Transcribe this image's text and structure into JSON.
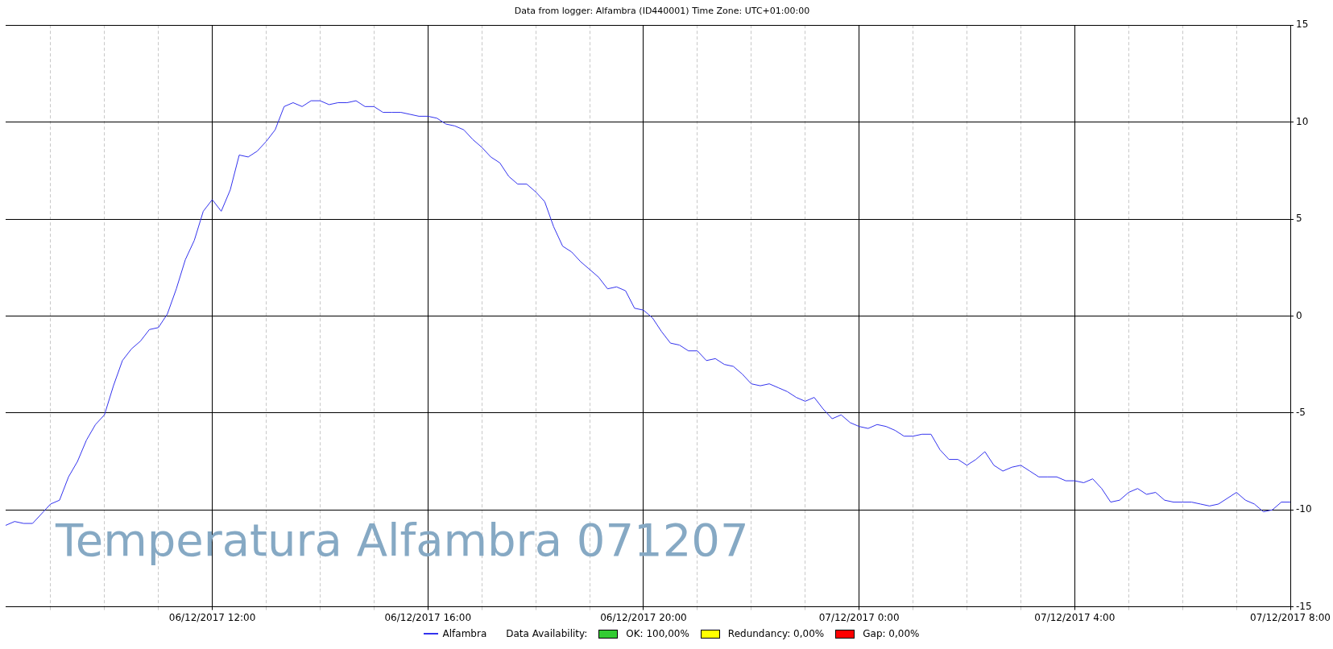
{
  "chart_data": {
    "type": "line",
    "title": "Data from logger: Alfambra (ID440001) Time Zone: UTC+01:00:00",
    "annotations": [
      "Temperatura Alfambra 071207",
      "Data Availability:",
      "OK: 100,00%",
      "Redundancy: 0,00%",
      "Gap: 0,00%"
    ],
    "x": [
      "2017-12-06T08:10",
      "2017-12-06T08:20",
      "2017-12-06T08:30",
      "2017-12-06T08:40",
      "2017-12-06T08:50",
      "2017-12-06T09:00",
      "2017-12-06T09:10",
      "2017-12-06T09:20",
      "2017-12-06T09:30",
      "2017-12-06T09:40",
      "2017-12-06T09:50",
      "2017-12-06T10:00",
      "2017-12-06T10:10",
      "2017-12-06T10:20",
      "2017-12-06T10:30",
      "2017-12-06T10:40",
      "2017-12-06T10:50",
      "2017-12-06T11:00",
      "2017-12-06T11:10",
      "2017-12-06T11:20",
      "2017-12-06T11:30",
      "2017-12-06T11:40",
      "2017-12-06T11:50",
      "2017-12-06T12:00",
      "2017-12-06T12:10",
      "2017-12-06T12:20",
      "2017-12-06T12:30",
      "2017-12-06T12:40",
      "2017-12-06T12:50",
      "2017-12-06T13:00",
      "2017-12-06T13:10",
      "2017-12-06T13:20",
      "2017-12-06T13:30",
      "2017-12-06T13:40",
      "2017-12-06T13:50",
      "2017-12-06T14:00",
      "2017-12-06T14:10",
      "2017-12-06T14:20",
      "2017-12-06T14:30",
      "2017-12-06T14:40",
      "2017-12-06T14:50",
      "2017-12-06T15:00",
      "2017-12-06T15:10",
      "2017-12-06T15:20",
      "2017-12-06T15:30",
      "2017-12-06T15:40",
      "2017-12-06T15:50",
      "2017-12-06T16:00",
      "2017-12-06T16:10",
      "2017-12-06T16:20",
      "2017-12-06T16:30",
      "2017-12-06T16:40",
      "2017-12-06T16:50",
      "2017-12-06T17:00",
      "2017-12-06T17:10",
      "2017-12-06T17:20",
      "2017-12-06T17:30",
      "2017-12-06T17:40",
      "2017-12-06T17:50",
      "2017-12-06T18:00",
      "2017-12-06T18:10",
      "2017-12-06T18:20",
      "2017-12-06T18:30",
      "2017-12-06T18:40",
      "2017-12-06T18:50",
      "2017-12-06T19:00",
      "2017-12-06T19:10",
      "2017-12-06T19:20",
      "2017-12-06T19:30",
      "2017-12-06T19:40",
      "2017-12-06T19:50",
      "2017-12-06T20:00",
      "2017-12-06T20:10",
      "2017-12-06T20:20",
      "2017-12-06T20:30",
      "2017-12-06T20:40",
      "2017-12-06T20:50",
      "2017-12-06T21:00",
      "2017-12-06T21:10",
      "2017-12-06T21:20",
      "2017-12-06T21:30",
      "2017-12-06T21:40",
      "2017-12-06T21:50",
      "2017-12-06T22:00",
      "2017-12-06T22:10",
      "2017-12-06T22:20",
      "2017-12-06T22:30",
      "2017-12-06T22:40",
      "2017-12-06T22:50",
      "2017-12-06T23:00",
      "2017-12-06T23:10",
      "2017-12-06T23:20",
      "2017-12-06T23:30",
      "2017-12-06T23:40",
      "2017-12-06T23:50",
      "2017-12-07T00:00",
      "2017-12-07T00:10",
      "2017-12-07T00:20",
      "2017-12-07T00:30",
      "2017-12-07T00:40",
      "2017-12-07T00:50",
      "2017-12-07T01:00",
      "2017-12-07T01:10",
      "2017-12-07T01:20",
      "2017-12-07T01:30",
      "2017-12-07T01:40",
      "2017-12-07T01:50",
      "2017-12-07T02:00",
      "2017-12-07T02:10",
      "2017-12-07T02:20",
      "2017-12-07T02:30",
      "2017-12-07T02:40",
      "2017-12-07T02:50",
      "2017-12-07T03:00",
      "2017-12-07T03:10",
      "2017-12-07T03:20",
      "2017-12-07T03:30",
      "2017-12-07T03:40",
      "2017-12-07T03:50",
      "2017-12-07T04:00",
      "2017-12-07T04:10",
      "2017-12-07T04:20",
      "2017-12-07T04:30",
      "2017-12-07T04:40",
      "2017-12-07T04:50",
      "2017-12-07T05:00",
      "2017-12-07T05:10",
      "2017-12-07T05:20",
      "2017-12-07T05:30",
      "2017-12-07T05:40",
      "2017-12-07T05:50",
      "2017-12-07T06:00",
      "2017-12-07T06:10",
      "2017-12-07T06:20",
      "2017-12-07T06:30",
      "2017-12-07T06:40",
      "2017-12-07T06:50",
      "2017-12-07T07:00",
      "2017-12-07T07:10",
      "2017-12-07T07:20",
      "2017-12-07T07:30",
      "2017-12-07T07:40",
      "2017-12-07T07:50",
      "2017-12-07T08:00"
    ],
    "series": [
      {
        "name": "Alfambra",
        "color": "#3333ee",
        "values": [
          -10.8,
          -10.6,
          -10.7,
          -10.7,
          -10.2,
          -9.7,
          -9.5,
          -8.3,
          -7.5,
          -6.4,
          -5.6,
          -5.1,
          -3.6,
          -2.3,
          -1.7,
          -1.3,
          -0.7,
          -0.6,
          0.1,
          1.4,
          2.9,
          3.9,
          5.4,
          6.0,
          5.4,
          6.5,
          8.3,
          8.2,
          8.5,
          9.0,
          9.6,
          10.8,
          11.0,
          10.8,
          11.1,
          11.1,
          10.9,
          11.0,
          11.0,
          11.1,
          10.8,
          10.8,
          10.5,
          10.5,
          10.5,
          10.4,
          10.3,
          10.3,
          10.2,
          9.9,
          9.8,
          9.6,
          9.1,
          8.7,
          8.2,
          7.9,
          7.2,
          6.8,
          6.8,
          6.4,
          5.9,
          4.6,
          3.6,
          3.3,
          2.8,
          2.4,
          2.0,
          1.4,
          1.5,
          1.3,
          0.4,
          0.3,
          -0.1,
          -0.8,
          -1.4,
          -1.5,
          -1.8,
          -1.8,
          -2.3,
          -2.2,
          -2.5,
          -2.6,
          -3.0,
          -3.5,
          -3.6,
          -3.5,
          -3.7,
          -3.9,
          -4.2,
          -4.4,
          -4.2,
          -4.8,
          -5.3,
          -5.1,
          -5.5,
          -5.7,
          -5.8,
          -5.6,
          -5.7,
          -5.9,
          -6.2,
          -6.2,
          -6.1,
          -6.1,
          -6.9,
          -7.4,
          -7.4,
          -7.7,
          -7.4,
          -7.0,
          -7.7,
          -8.0,
          -7.8,
          -7.7,
          -8.0,
          -8.3,
          -8.3,
          -8.3,
          -8.5,
          -8.5,
          -8.6,
          -8.4,
          -8.9,
          -9.6,
          -9.5,
          -9.1,
          -8.9,
          -9.2,
          -9.1,
          -9.5,
          -9.6,
          -9.6,
          -9.6,
          -9.7,
          -9.8,
          -9.7,
          -9.4,
          -9.1,
          -9.5,
          -9.7,
          -10.1,
          -10.0,
          -9.6,
          -9.6
        ]
      }
    ],
    "xlim": [
      "2017-12-06T08:10",
      "2017-12-07T08:00"
    ],
    "xticks": [
      {
        "value": "2017-12-06T09:00",
        "label": null
      },
      {
        "value": "2017-12-06T10:00",
        "label": null
      },
      {
        "value": "2017-12-06T11:00",
        "label": null
      },
      {
        "value": "2017-12-06T12:00",
        "label": "06/12/2017 12:00"
      },
      {
        "value": "2017-12-06T13:00",
        "label": null
      },
      {
        "value": "2017-12-06T14:00",
        "label": null
      },
      {
        "value": "2017-12-06T15:00",
        "label": null
      },
      {
        "value": "2017-12-06T16:00",
        "label": "06/12/2017 16:00"
      },
      {
        "value": "2017-12-06T17:00",
        "label": null
      },
      {
        "value": "2017-12-06T18:00",
        "label": null
      },
      {
        "value": "2017-12-06T19:00",
        "label": null
      },
      {
        "value": "2017-12-06T20:00",
        "label": "06/12/2017 20:00"
      },
      {
        "value": "2017-12-06T21:00",
        "label": null
      },
      {
        "value": "2017-12-06T22:00",
        "label": null
      },
      {
        "value": "2017-12-06T23:00",
        "label": null
      },
      {
        "value": "2017-12-07T00:00",
        "label": "07/12/2017 0:00"
      },
      {
        "value": "2017-12-07T01:00",
        "label": null
      },
      {
        "value": "2017-12-07T02:00",
        "label": null
      },
      {
        "value": "2017-12-07T03:00",
        "label": null
      },
      {
        "value": "2017-12-07T04:00",
        "label": "07/12/2017 4:00"
      },
      {
        "value": "2017-12-07T05:00",
        "label": null
      },
      {
        "value": "2017-12-07T06:00",
        "label": null
      },
      {
        "value": "2017-12-07T07:00",
        "label": null
      },
      {
        "value": "2017-12-07T08:00",
        "label": "07/12/2017 8:00"
      }
    ],
    "ylim": [
      -15,
      15
    ],
    "yticks": [
      -15,
      -10,
      -5,
      0,
      5,
      10,
      15
    ],
    "grid": true,
    "legend": "bottom",
    "marker": "none",
    "line_style": "solid"
  }
}
